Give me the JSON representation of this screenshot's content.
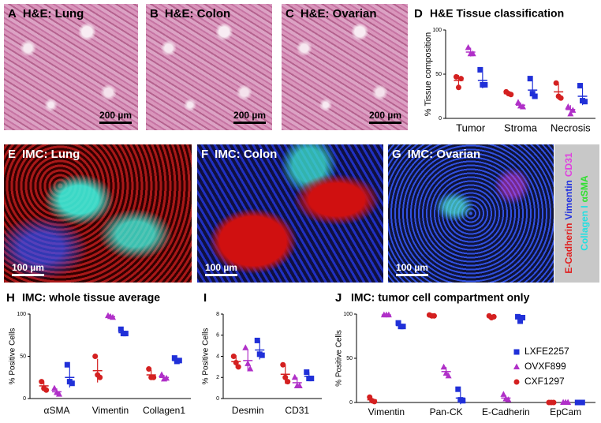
{
  "images": [
    {
      "letter": "A",
      "title": "H&E: Lung",
      "scale": "200 µm"
    },
    {
      "letter": "B",
      "title": "H&E: Colon",
      "scale": "200 µm"
    },
    {
      "letter": "C",
      "title": "H&E: Ovarian",
      "scale": "200 µm"
    },
    {
      "letter": "E",
      "title": "IMC: Lung",
      "scale": "100 µm"
    },
    {
      "letter": "F",
      "title": "IMC: Colon",
      "scale": "100 µm"
    },
    {
      "letter": "G",
      "title": "IMC: Ovarian",
      "scale": "100 µm"
    }
  ],
  "channels": [
    [
      {
        "text": "E-Cadherin",
        "color": "#e02020"
      },
      {
        "text": "Vimentin",
        "color": "#2030e0"
      },
      {
        "text": "CD31",
        "color": "#e040e0"
      }
    ],
    [
      {
        "text": "Collagen I",
        "color": "#20e0e0"
      },
      {
        "text": "αSMA",
        "color": "#30e030"
      }
    ]
  ],
  "chart_data": [
    {
      "type": "dot",
      "letter": "D",
      "title": "H&E Tissue classification",
      "ylabel": "% Tissue composition",
      "categories": [
        "Tumor",
        "Stroma",
        "Necrosis"
      ],
      "ylim": [
        0,
        100
      ],
      "yticks": [
        0,
        50,
        100
      ],
      "series": [
        {
          "color": "#d42020",
          "marker": "circle",
          "values": [
            43,
            28,
            30
          ],
          "errors": [
            6,
            2,
            9
          ],
          "points": [
            [
              47,
              35,
              45
            ],
            [
              30,
              28,
              27
            ],
            [
              40,
              25,
              23
            ]
          ]
        },
        {
          "color": "#b030c8",
          "marker": "triangle",
          "values": [
            75,
            15,
            10
          ],
          "errors": [
            5,
            3,
            5
          ],
          "points": [
            [
              80,
              73,
              73
            ],
            [
              18,
              14,
              13
            ],
            [
              13,
              5,
              9
            ]
          ]
        },
        {
          "color": "#2030d8",
          "marker": "square",
          "values": [
            43,
            32,
            25
          ],
          "errors": [
            9,
            10,
            10
          ],
          "points": [
            [
              55,
              38,
              38
            ],
            [
              45,
              28,
              25
            ],
            [
              37,
              20,
              19
            ]
          ]
        }
      ]
    },
    {
      "type": "dot",
      "letter": "H",
      "title": "IMC: whole tissue average",
      "ylabel": "% Positive Cells",
      "categories": [
        "αSMA",
        "Vimentin",
        "Collagen1"
      ],
      "ylim": [
        0,
        100
      ],
      "yticks": [
        0,
        50,
        100
      ],
      "series": [
        {
          "color": "#d42020",
          "marker": "circle",
          "values": [
            15,
            33,
            28
          ],
          "errors": [
            5,
            14,
            6
          ],
          "points": [
            [
              20,
              12,
              10
            ],
            [
              50,
              28,
              25
            ],
            [
              35,
              25,
              25
            ]
          ]
        },
        {
          "color": "#b030c8",
          "marker": "triangle",
          "values": [
            8,
            97,
            25
          ],
          "errors": [
            4,
            1,
            3
          ],
          "points": [
            [
              12,
              7,
              5
            ],
            [
              98,
              97,
              96
            ],
            [
              28,
              23,
              24
            ]
          ]
        },
        {
          "color": "#2030d8",
          "marker": "square",
          "values": [
            25,
            78,
            45
          ],
          "errors": [
            12,
            3,
            3
          ],
          "points": [
            [
              40,
              20,
              18
            ],
            [
              82,
              77,
              77
            ],
            [
              48,
              44,
              45
            ]
          ]
        }
      ]
    },
    {
      "type": "dot",
      "letter": "I",
      "ylabel": "% Positive Cells",
      "categories": [
        "Desmin",
        "CD31"
      ],
      "ylim": [
        0,
        8
      ],
      "yticks": [
        0,
        2,
        4,
        6,
        8
      ],
      "series": [
        {
          "color": "#d42020",
          "marker": "circle",
          "values": [
            3.5,
            2.3
          ],
          "errors": [
            0.6,
            0.9
          ],
          "points": [
            [
              4.0,
              3.4,
              3.0
            ],
            [
              3.2,
              2.0,
              1.6
            ]
          ]
        },
        {
          "color": "#b030c8",
          "marker": "triangle",
          "values": [
            3.6,
            1.5
          ],
          "errors": [
            1.0,
            0.5
          ],
          "points": [
            [
              4.8,
              3.3,
              2.8
            ],
            [
              2.0,
              1.2,
              1.2
            ]
          ]
        },
        {
          "color": "#2030d8",
          "marker": "square",
          "values": [
            4.6,
            2.1
          ],
          "errors": [
            0.9,
            0.4
          ],
          "points": [
            [
              5.5,
              4.2,
              4.1
            ],
            [
              2.5,
              1.9,
              1.9
            ]
          ]
        }
      ]
    },
    {
      "type": "dot",
      "letter": "J",
      "title": "IMC: tumor cell compartment only",
      "ylabel": "% Positive Cells",
      "categories": [
        "Vimentin",
        "Pan-CK",
        "E-Cadherin",
        "EpCam"
      ],
      "ylim": [
        0,
        100
      ],
      "yticks": [
        0,
        50,
        100
      ],
      "legend": "right",
      "series": [
        {
          "name": "CXF1297",
          "color": "#d42020",
          "marker": "circle",
          "values": [
            3,
            98,
            97,
            0
          ],
          "errors": [
            2,
            1,
            1,
            0
          ],
          "points": [
            [
              6,
              2,
              1
            ],
            [
              99,
              98,
              98
            ],
            [
              98,
              96,
              97
            ],
            [
              0,
              0,
              0
            ]
          ]
        },
        {
          "name": "OVXF899",
          "color": "#b030c8",
          "marker": "triangle",
          "values": [
            99,
            35,
            5,
            0
          ],
          "errors": [
            0.5,
            5,
            3,
            0
          ],
          "points": [
            [
              99,
              99,
              99
            ],
            [
              40,
              33,
              30
            ],
            [
              9,
              4,
              3
            ],
            [
              0,
              0,
              0
            ]
          ]
        },
        {
          "name": "LXFE2257",
          "color": "#2030d8",
          "marker": "square",
          "values": [
            87,
            5,
            95,
            0
          ],
          "errors": [
            2,
            7,
            3,
            0
          ],
          "points": [
            [
              90,
              86,
              86
            ],
            [
              15,
              3,
              2
            ],
            [
              97,
              92,
              96
            ],
            [
              0,
              0,
              0
            ]
          ]
        }
      ]
    }
  ]
}
